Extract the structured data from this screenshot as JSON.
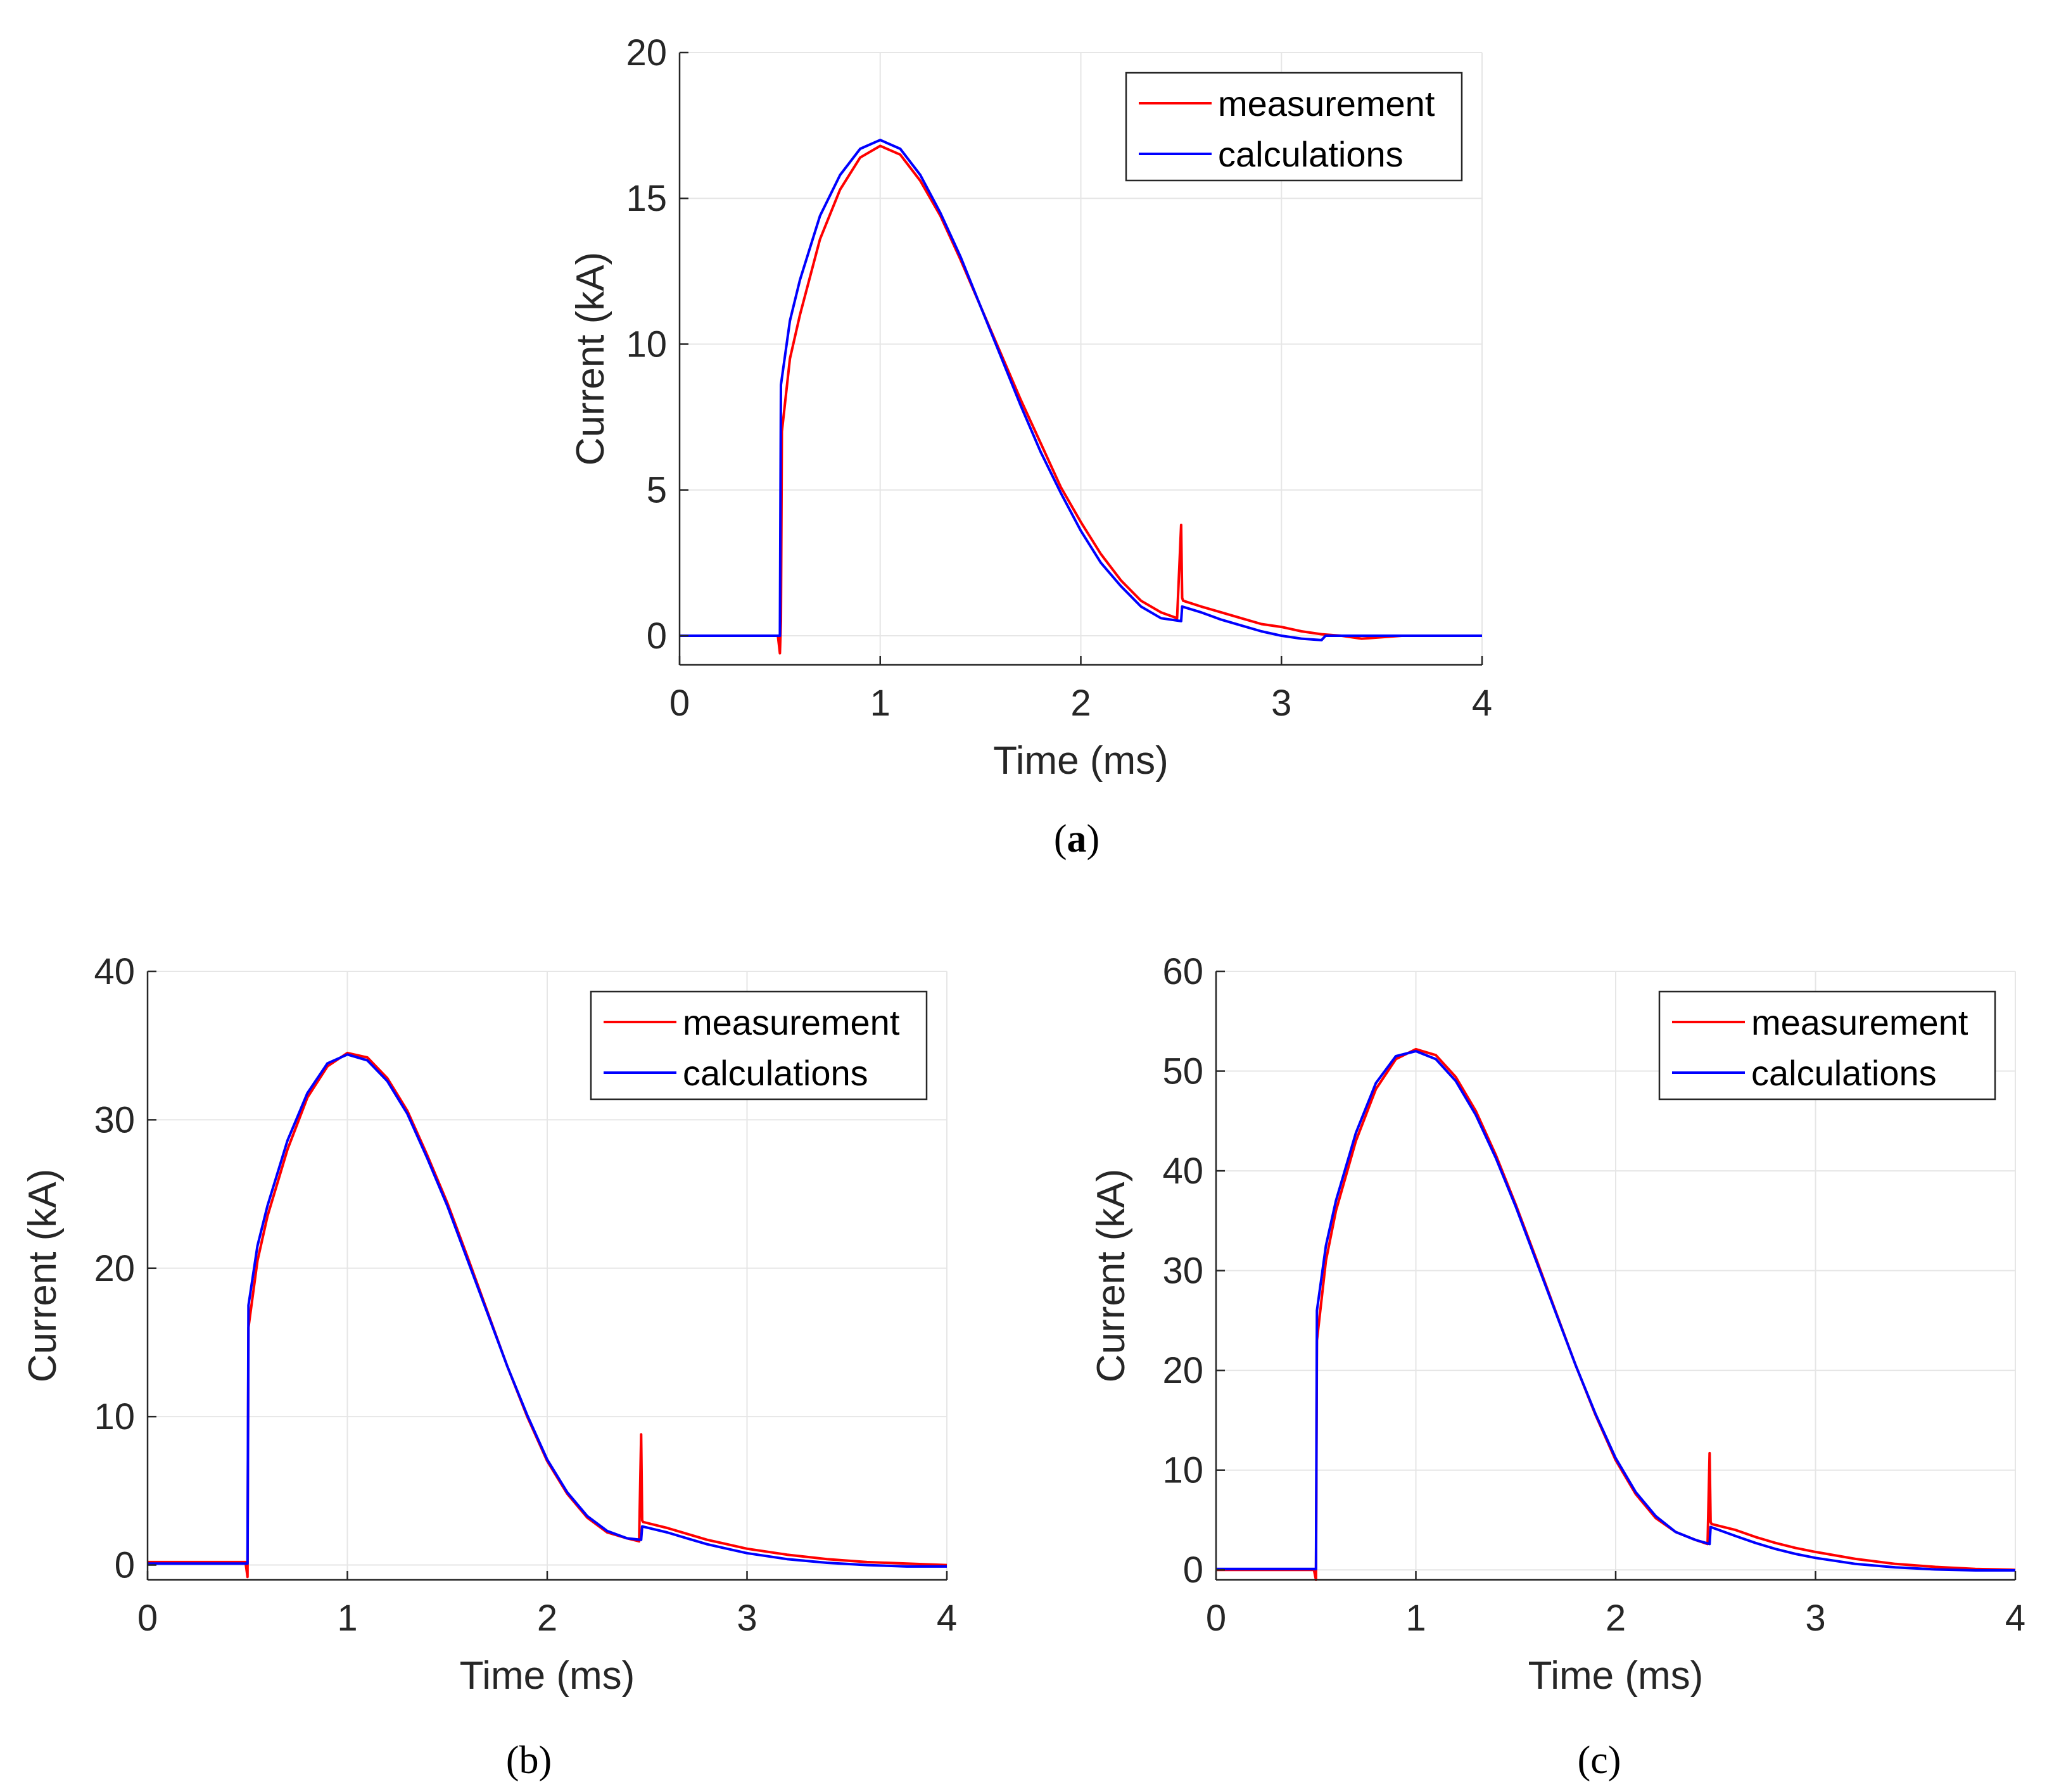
{
  "figure": {
    "captions": [
      "a",
      "(b)",
      "(c)"
    ],
    "caption_a_open": "(",
    "caption_a_close": ")"
  },
  "colors": {
    "measurement": "#ff0000",
    "calculations": "#0000ff",
    "grid": "#e6e6e6",
    "axis": "#262626"
  },
  "chart_data": [
    {
      "id": "a",
      "type": "line",
      "xlabel": "Time (ms)",
      "ylabel": "Current (kA)",
      "xlim": [
        0,
        4
      ],
      "ylim": [
        -1,
        20
      ],
      "xticks": [
        0,
        1,
        2,
        3,
        4
      ],
      "yticks": [
        0,
        5,
        10,
        15,
        20
      ],
      "grid": true,
      "legend_position": "top-right",
      "series": [
        {
          "name": "measurement",
          "color": "#ff0000",
          "x": [
            0,
            0.1,
            0.2,
            0.3,
            0.4,
            0.49,
            0.5,
            0.505,
            0.51,
            0.55,
            0.6,
            0.7,
            0.8,
            0.9,
            1.0,
            1.1,
            1.2,
            1.3,
            1.4,
            1.5,
            1.6,
            1.7,
            1.8,
            1.9,
            2.0,
            2.1,
            2.2,
            2.3,
            2.4,
            2.48,
            2.5,
            2.505,
            2.51,
            2.6,
            2.7,
            2.8,
            2.9,
            3.0,
            3.1,
            3.2,
            3.3,
            3.4,
            3.6,
            3.8,
            4.0
          ],
          "y": [
            0,
            0,
            0,
            0,
            0,
            0,
            -0.6,
            0.5,
            7.0,
            9.5,
            11.0,
            13.6,
            15.3,
            16.4,
            16.8,
            16.5,
            15.6,
            14.4,
            12.9,
            11.3,
            9.7,
            8.1,
            6.6,
            5.1,
            3.9,
            2.8,
            1.9,
            1.2,
            0.8,
            0.6,
            3.8,
            1.3,
            1.2,
            1.0,
            0.8,
            0.6,
            0.4,
            0.3,
            0.15,
            0.05,
            0,
            -0.1,
            0,
            0,
            0
          ]
        },
        {
          "name": "calculations",
          "color": "#0000ff",
          "x": [
            0,
            0.1,
            0.2,
            0.3,
            0.4,
            0.49,
            0.5,
            0.505,
            0.55,
            0.6,
            0.7,
            0.8,
            0.9,
            1.0,
            1.1,
            1.2,
            1.3,
            1.4,
            1.5,
            1.6,
            1.7,
            1.8,
            1.9,
            2.0,
            2.1,
            2.2,
            2.3,
            2.4,
            2.5,
            2.505,
            2.6,
            2.7,
            2.8,
            2.9,
            3.0,
            3.1,
            3.2,
            3.22,
            3.4,
            3.6,
            3.8,
            4.0
          ],
          "y": [
            0,
            0,
            0,
            0,
            0,
            0,
            0,
            8.6,
            10.8,
            12.2,
            14.4,
            15.8,
            16.7,
            17.0,
            16.7,
            15.8,
            14.5,
            13.0,
            11.3,
            9.6,
            7.9,
            6.3,
            4.9,
            3.6,
            2.5,
            1.7,
            1.0,
            0.6,
            0.5,
            1.0,
            0.8,
            0.55,
            0.35,
            0.15,
            0.0,
            -0.1,
            -0.15,
            0,
            0,
            0,
            0,
            0
          ]
        }
      ]
    },
    {
      "id": "b",
      "type": "line",
      "xlabel": "Time (ms)",
      "ylabel": "Current (kA)",
      "xlim": [
        0,
        4
      ],
      "ylim": [
        -1,
        40
      ],
      "xticks": [
        0,
        1,
        2,
        3,
        4
      ],
      "yticks": [
        0,
        10,
        20,
        30,
        40
      ],
      "grid": true,
      "legend_position": "top-right",
      "series": [
        {
          "name": "measurement",
          "color": "#ff0000",
          "x": [
            0,
            0.1,
            0.2,
            0.3,
            0.4,
            0.49,
            0.5,
            0.505,
            0.55,
            0.6,
            0.7,
            0.8,
            0.9,
            1.0,
            1.1,
            1.2,
            1.3,
            1.4,
            1.5,
            1.6,
            1.7,
            1.8,
            1.9,
            2.0,
            2.1,
            2.2,
            2.3,
            2.4,
            2.46,
            2.47,
            2.475,
            2.48,
            2.6,
            2.7,
            2.8,
            2.9,
            3.0,
            3.2,
            3.4,
            3.6,
            3.8,
            4.0
          ],
          "y": [
            0.2,
            0.2,
            0.2,
            0.2,
            0.2,
            0.2,
            -0.8,
            16.0,
            20.5,
            23.5,
            28.0,
            31.5,
            33.6,
            34.5,
            34.2,
            32.8,
            30.6,
            27.6,
            24.4,
            20.8,
            17.1,
            13.4,
            10.0,
            7.0,
            4.8,
            3.2,
            2.2,
            1.8,
            1.6,
            8.8,
            3.0,
            2.9,
            2.5,
            2.1,
            1.7,
            1.4,
            1.1,
            0.7,
            0.4,
            0.2,
            0.1,
            0
          ]
        },
        {
          "name": "calculations",
          "color": "#0000ff",
          "x": [
            0,
            0.1,
            0.2,
            0.3,
            0.4,
            0.49,
            0.5,
            0.505,
            0.55,
            0.6,
            0.7,
            0.8,
            0.9,
            1.0,
            1.1,
            1.2,
            1.3,
            1.4,
            1.5,
            1.6,
            1.7,
            1.8,
            1.9,
            2.0,
            2.1,
            2.2,
            2.3,
            2.4,
            2.47,
            2.475,
            2.6,
            2.7,
            2.8,
            2.9,
            3.0,
            3.2,
            3.4,
            3.6,
            3.8,
            4.0
          ],
          "y": [
            0.1,
            0.1,
            0.1,
            0.1,
            0.1,
            0.1,
            0.1,
            17.5,
            21.5,
            24.2,
            28.6,
            31.8,
            33.8,
            34.4,
            34.0,
            32.6,
            30.4,
            27.4,
            24.2,
            20.6,
            17.0,
            13.4,
            10.1,
            7.1,
            4.9,
            3.3,
            2.3,
            1.8,
            1.7,
            2.6,
            2.2,
            1.8,
            1.4,
            1.1,
            0.8,
            0.4,
            0.15,
            0,
            -0.1,
            -0.1
          ]
        }
      ]
    },
    {
      "id": "c",
      "type": "line",
      "xlabel": "Time (ms)",
      "ylabel": "Current (kA)",
      "xlim": [
        0,
        4
      ],
      "ylim": [
        -1,
        60
      ],
      "xticks": [
        0,
        1,
        2,
        3,
        4
      ],
      "yticks": [
        0,
        10,
        20,
        30,
        40,
        50,
        60
      ],
      "grid": true,
      "legend_position": "top-right",
      "series": [
        {
          "name": "measurement",
          "color": "#ff0000",
          "x": [
            0,
            0.1,
            0.2,
            0.3,
            0.4,
            0.49,
            0.5,
            0.505,
            0.55,
            0.6,
            0.7,
            0.8,
            0.9,
            1.0,
            1.1,
            1.2,
            1.3,
            1.4,
            1.5,
            1.6,
            1.7,
            1.8,
            1.9,
            2.0,
            2.1,
            2.2,
            2.3,
            2.4,
            2.46,
            2.47,
            2.475,
            2.48,
            2.6,
            2.7,
            2.8,
            2.9,
            3.0,
            3.2,
            3.4,
            3.6,
            3.8,
            4.0
          ],
          "y": [
            0,
            0,
            0,
            0,
            0,
            0,
            -1.0,
            23.0,
            31.0,
            36.0,
            43.0,
            48.2,
            51.2,
            52.2,
            51.6,
            49.4,
            46.0,
            41.6,
            36.6,
            31.3,
            25.9,
            20.5,
            15.5,
            11.0,
            7.6,
            5.2,
            3.8,
            3.0,
            2.6,
            11.7,
            4.8,
            4.6,
            4.0,
            3.3,
            2.7,
            2.2,
            1.8,
            1.1,
            0.6,
            0.3,
            0.1,
            0
          ]
        },
        {
          "name": "calculations",
          "color": "#0000ff",
          "x": [
            0,
            0.1,
            0.2,
            0.3,
            0.4,
            0.49,
            0.5,
            0.505,
            0.55,
            0.6,
            0.7,
            0.8,
            0.9,
            1.0,
            1.1,
            1.2,
            1.3,
            1.4,
            1.5,
            1.6,
            1.7,
            1.8,
            1.9,
            2.0,
            2.1,
            2.2,
            2.3,
            2.4,
            2.47,
            2.475,
            2.6,
            2.7,
            2.8,
            2.9,
            3.0,
            3.2,
            3.4,
            3.6,
            3.8,
            4.0
          ],
          "y": [
            0.1,
            0.1,
            0.1,
            0.1,
            0.1,
            0.1,
            0.1,
            26.0,
            32.5,
            37.0,
            43.8,
            48.8,
            51.5,
            52.0,
            51.2,
            49.0,
            45.6,
            41.3,
            36.4,
            31.1,
            25.8,
            20.5,
            15.6,
            11.2,
            7.8,
            5.4,
            3.8,
            3.0,
            2.6,
            4.3,
            3.4,
            2.7,
            2.1,
            1.6,
            1.2,
            0.6,
            0.25,
            0.05,
            -0.05,
            -0.05
          ]
        }
      ]
    }
  ]
}
